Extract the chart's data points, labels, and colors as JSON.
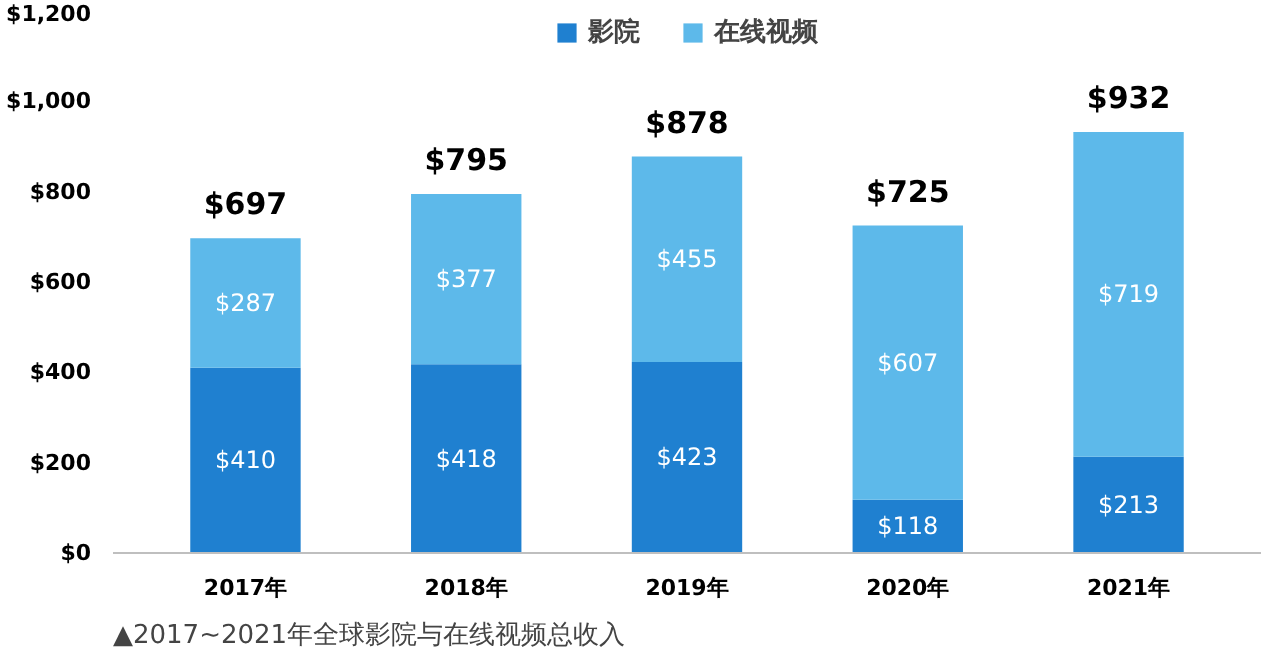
{
  "chart_data": {
    "type": "bar",
    "stacked": true,
    "categories": [
      "2017年",
      "2018年",
      "2019年",
      "2020年",
      "2021年"
    ],
    "series": [
      {
        "name": "影院",
        "color": "#1f80d0",
        "values": [
          410,
          418,
          423,
          118,
          213
        ],
        "value_labels": [
          "$410",
          "$418",
          "$423",
          "$118",
          "$213"
        ]
      },
      {
        "name": "在线视频",
        "color": "#5db9ea",
        "values": [
          287,
          377,
          455,
          607,
          719
        ],
        "value_labels": [
          "$287",
          "$377",
          "$455",
          "$607",
          "$719"
        ]
      }
    ],
    "totals": [
      "$697",
      "$795",
      "$878",
      "$725",
      "$932"
    ],
    "ylim": [
      0,
      1200
    ],
    "yticks": [
      {
        "value": 0,
        "label": "$0"
      },
      {
        "value": 200,
        "label": "$200"
      },
      {
        "value": 400,
        "label": "$400"
      },
      {
        "value": 600,
        "label": "$600"
      },
      {
        "value": 800,
        "label": "$800"
      },
      {
        "value": 1000,
        "label": "$1,000"
      },
      {
        "value": 1200,
        "label": "$1,200"
      }
    ],
    "grid": false,
    "legend": "top",
    "annotations": [
      "▲2017~2021年全球影院与在线视频总收入"
    ]
  }
}
